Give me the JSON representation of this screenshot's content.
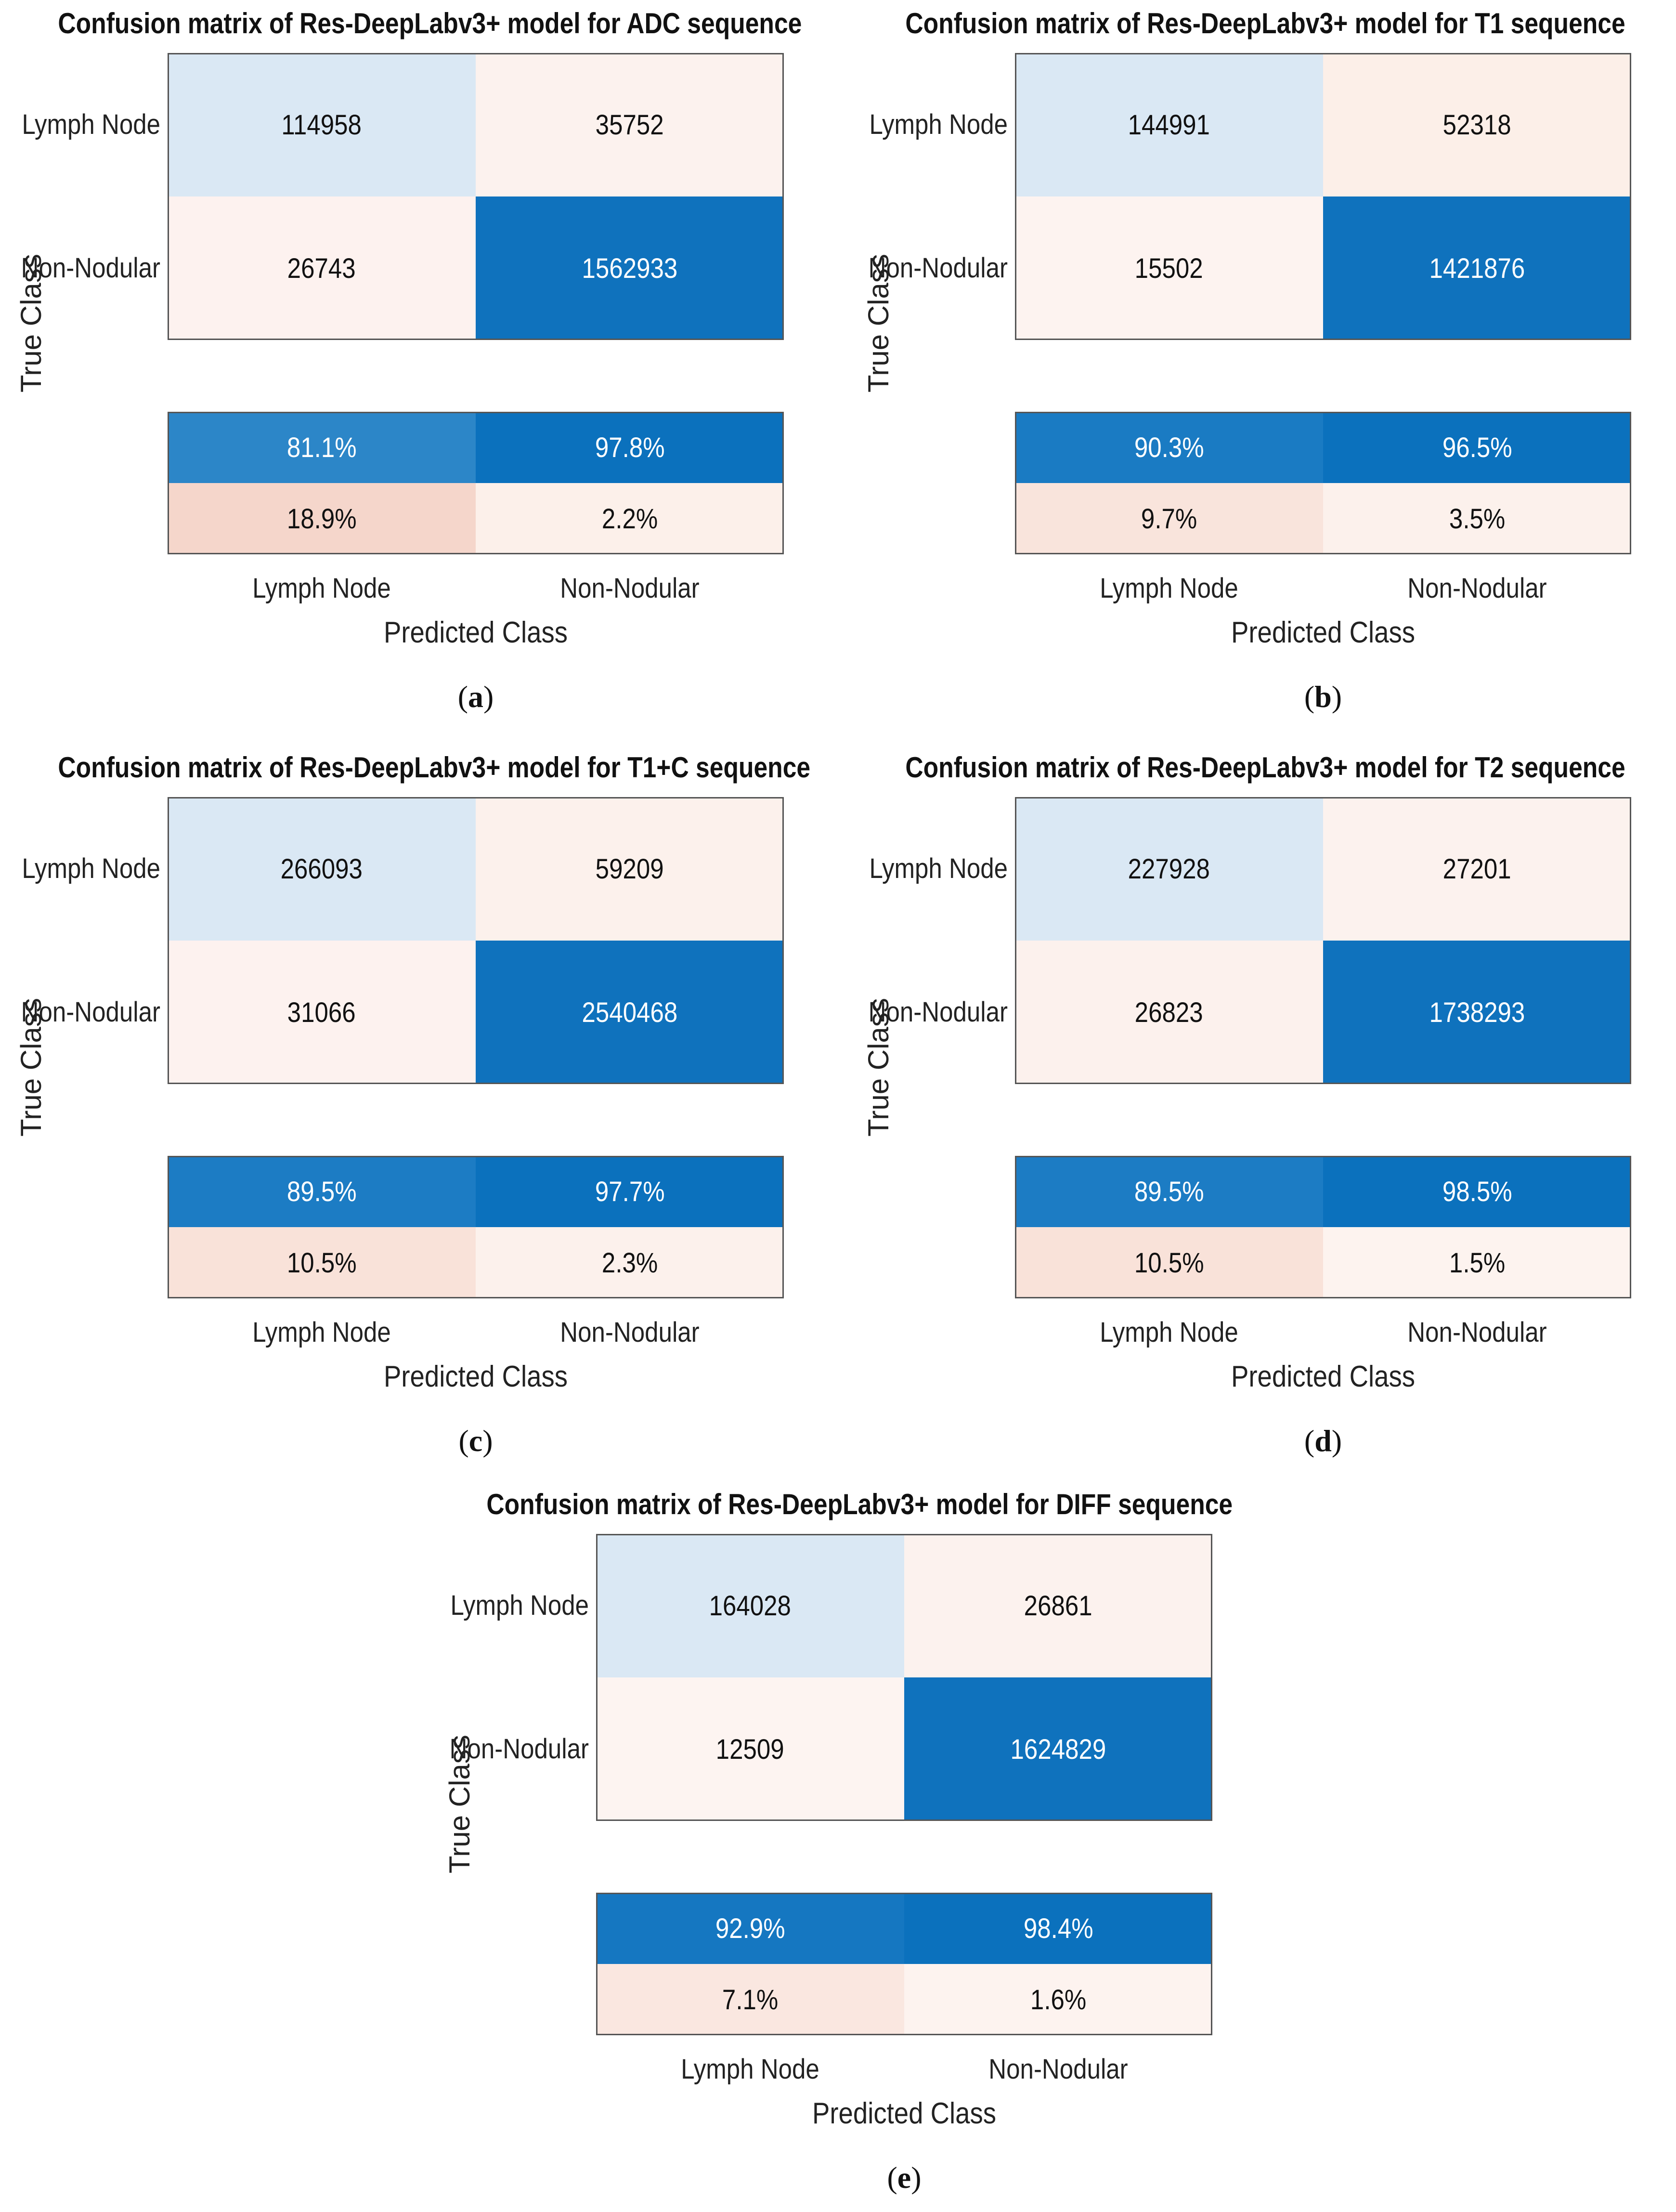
{
  "chart_data": [
    {
      "type": "heatmap",
      "panel": "a",
      "title": "Confusion matrix of Res-DeepLabv3+ model for ADC sequence",
      "ylabel": "True Class",
      "xlabel": "Predicted Class",
      "row_labels": [
        "Lymph Node",
        "Non-Nodular"
      ],
      "col_labels": [
        "Lymph Node",
        "Non-Nodular"
      ],
      "matrix": [
        [
          "114958",
          "35752"
        ],
        [
          "26743",
          "1562933"
        ]
      ],
      "summary": [
        [
          "81.1%",
          "97.8%"
        ],
        [
          "18.9%",
          "2.2%"
        ]
      ],
      "colors": {
        "matrix": [
          [
            "#dae8f4",
            "#fcf2ee"
          ],
          [
            "#fdf2ef",
            "#0f72bd"
          ]
        ],
        "summary": [
          [
            "#2c86c8",
            "#0b71bd"
          ],
          [
            "#f5d6cb",
            "#fcf0ea"
          ]
        ]
      },
      "text_light": {
        "matrix": [
          [
            false,
            false
          ],
          [
            false,
            true
          ]
        ],
        "summary": [
          [
            true,
            true
          ],
          [
            false,
            false
          ]
        ]
      }
    },
    {
      "type": "heatmap",
      "panel": "b",
      "title": "Confusion matrix of Res-DeepLabv3+ model for T1 sequence",
      "ylabel": "True Class",
      "xlabel": "Predicted Class",
      "row_labels": [
        "Lymph Node",
        "Non-Nodular"
      ],
      "col_labels": [
        "Lymph Node",
        "Non-Nodular"
      ],
      "matrix": [
        [
          "144991",
          "52318"
        ],
        [
          "15502",
          "1421876"
        ]
      ],
      "summary": [
        [
          "90.3%",
          "96.5%"
        ],
        [
          "9.7%",
          "3.5%"
        ]
      ],
      "colors": {
        "matrix": [
          [
            "#dae8f4",
            "#fcefe8"
          ],
          [
            "#fdf3f0",
            "#0f72bd"
          ]
        ],
        "summary": [
          [
            "#1a7bc3",
            "#0b71bd"
          ],
          [
            "#f9e4dc",
            "#fcf1ec"
          ]
        ]
      },
      "text_light": {
        "matrix": [
          [
            false,
            false
          ],
          [
            false,
            true
          ]
        ],
        "summary": [
          [
            true,
            true
          ],
          [
            false,
            false
          ]
        ]
      }
    },
    {
      "type": "heatmap",
      "panel": "c",
      "title": "Confusion matrix of Res-DeepLabv3+ model for T1+C sequence",
      "ylabel": "True Class",
      "xlabel": "Predicted Class",
      "row_labels": [
        "Lymph Node",
        "Non-Nodular"
      ],
      "col_labels": [
        "Lymph Node",
        "Non-Nodular"
      ],
      "matrix": [
        [
          "266093",
          "59209"
        ],
        [
          "31066",
          "2540468"
        ]
      ],
      "summary": [
        [
          "89.5%",
          "97.7%"
        ],
        [
          "10.5%",
          "2.3%"
        ]
      ],
      "colors": {
        "matrix": [
          [
            "#dae8f4",
            "#fcf1ec"
          ],
          [
            "#fdf2ef",
            "#0f72bd"
          ]
        ],
        "summary": [
          [
            "#1c7cc4",
            "#0b71bd"
          ],
          [
            "#f9e2d9",
            "#fcf1ec"
          ]
        ]
      },
      "text_light": {
        "matrix": [
          [
            false,
            false
          ],
          [
            false,
            true
          ]
        ],
        "summary": [
          [
            true,
            true
          ],
          [
            false,
            false
          ]
        ]
      }
    },
    {
      "type": "heatmap",
      "panel": "d",
      "title": "Confusion matrix of Res-DeepLabv3+ model for T2 sequence",
      "ylabel": "True Class",
      "xlabel": "Predicted Class",
      "row_labels": [
        "Lymph Node",
        "Non-Nodular"
      ],
      "col_labels": [
        "Lymph Node",
        "Non-Nodular"
      ],
      "matrix": [
        [
          "227928",
          "27201"
        ],
        [
          "26823",
          "1738293"
        ]
      ],
      "summary": [
        [
          "89.5%",
          "98.5%"
        ],
        [
          "10.5%",
          "1.5%"
        ]
      ],
      "colors": {
        "matrix": [
          [
            "#dae8f4",
            "#fcf2ee"
          ],
          [
            "#fcf1ed",
            "#0f72bd"
          ]
        ],
        "summary": [
          [
            "#1c7cc4",
            "#0b71bd"
          ],
          [
            "#f9e2d9",
            "#fdf3ef"
          ]
        ]
      },
      "text_light": {
        "matrix": [
          [
            false,
            false
          ],
          [
            false,
            true
          ]
        ],
        "summary": [
          [
            true,
            true
          ],
          [
            false,
            false
          ]
        ]
      }
    },
    {
      "type": "heatmap",
      "panel": "e",
      "title": "Confusion matrix of Res-DeepLabv3+ model for DIFF sequence",
      "ylabel": "True Class",
      "xlabel": "Predicted Class",
      "row_labels": [
        "Lymph Node",
        "Non-Nodular"
      ],
      "col_labels": [
        "Lymph Node",
        "Non-Nodular"
      ],
      "matrix": [
        [
          "164028",
          "26861"
        ],
        [
          "12509",
          "1624829"
        ]
      ],
      "summary": [
        [
          "92.9%",
          "98.4%"
        ],
        [
          "7.1%",
          "1.6%"
        ]
      ],
      "colors": {
        "matrix": [
          [
            "#dae8f4",
            "#fcf2ee"
          ],
          [
            "#fdf4f1",
            "#0f72bd"
          ]
        ],
        "summary": [
          [
            "#1577c1",
            "#0b71bd"
          ],
          [
            "#fae7e0",
            "#fdf3ef"
          ]
        ]
      },
      "text_light": {
        "matrix": [
          [
            false,
            false
          ],
          [
            false,
            true
          ]
        ],
        "summary": [
          [
            true,
            true
          ],
          [
            false,
            false
          ]
        ]
      }
    }
  ],
  "subfigure_labels": [
    "(a)",
    "(b)",
    "(c)",
    "(d)",
    "(e)"
  ],
  "subfigure_letters": [
    "a",
    "b",
    "c",
    "d",
    "e"
  ]
}
